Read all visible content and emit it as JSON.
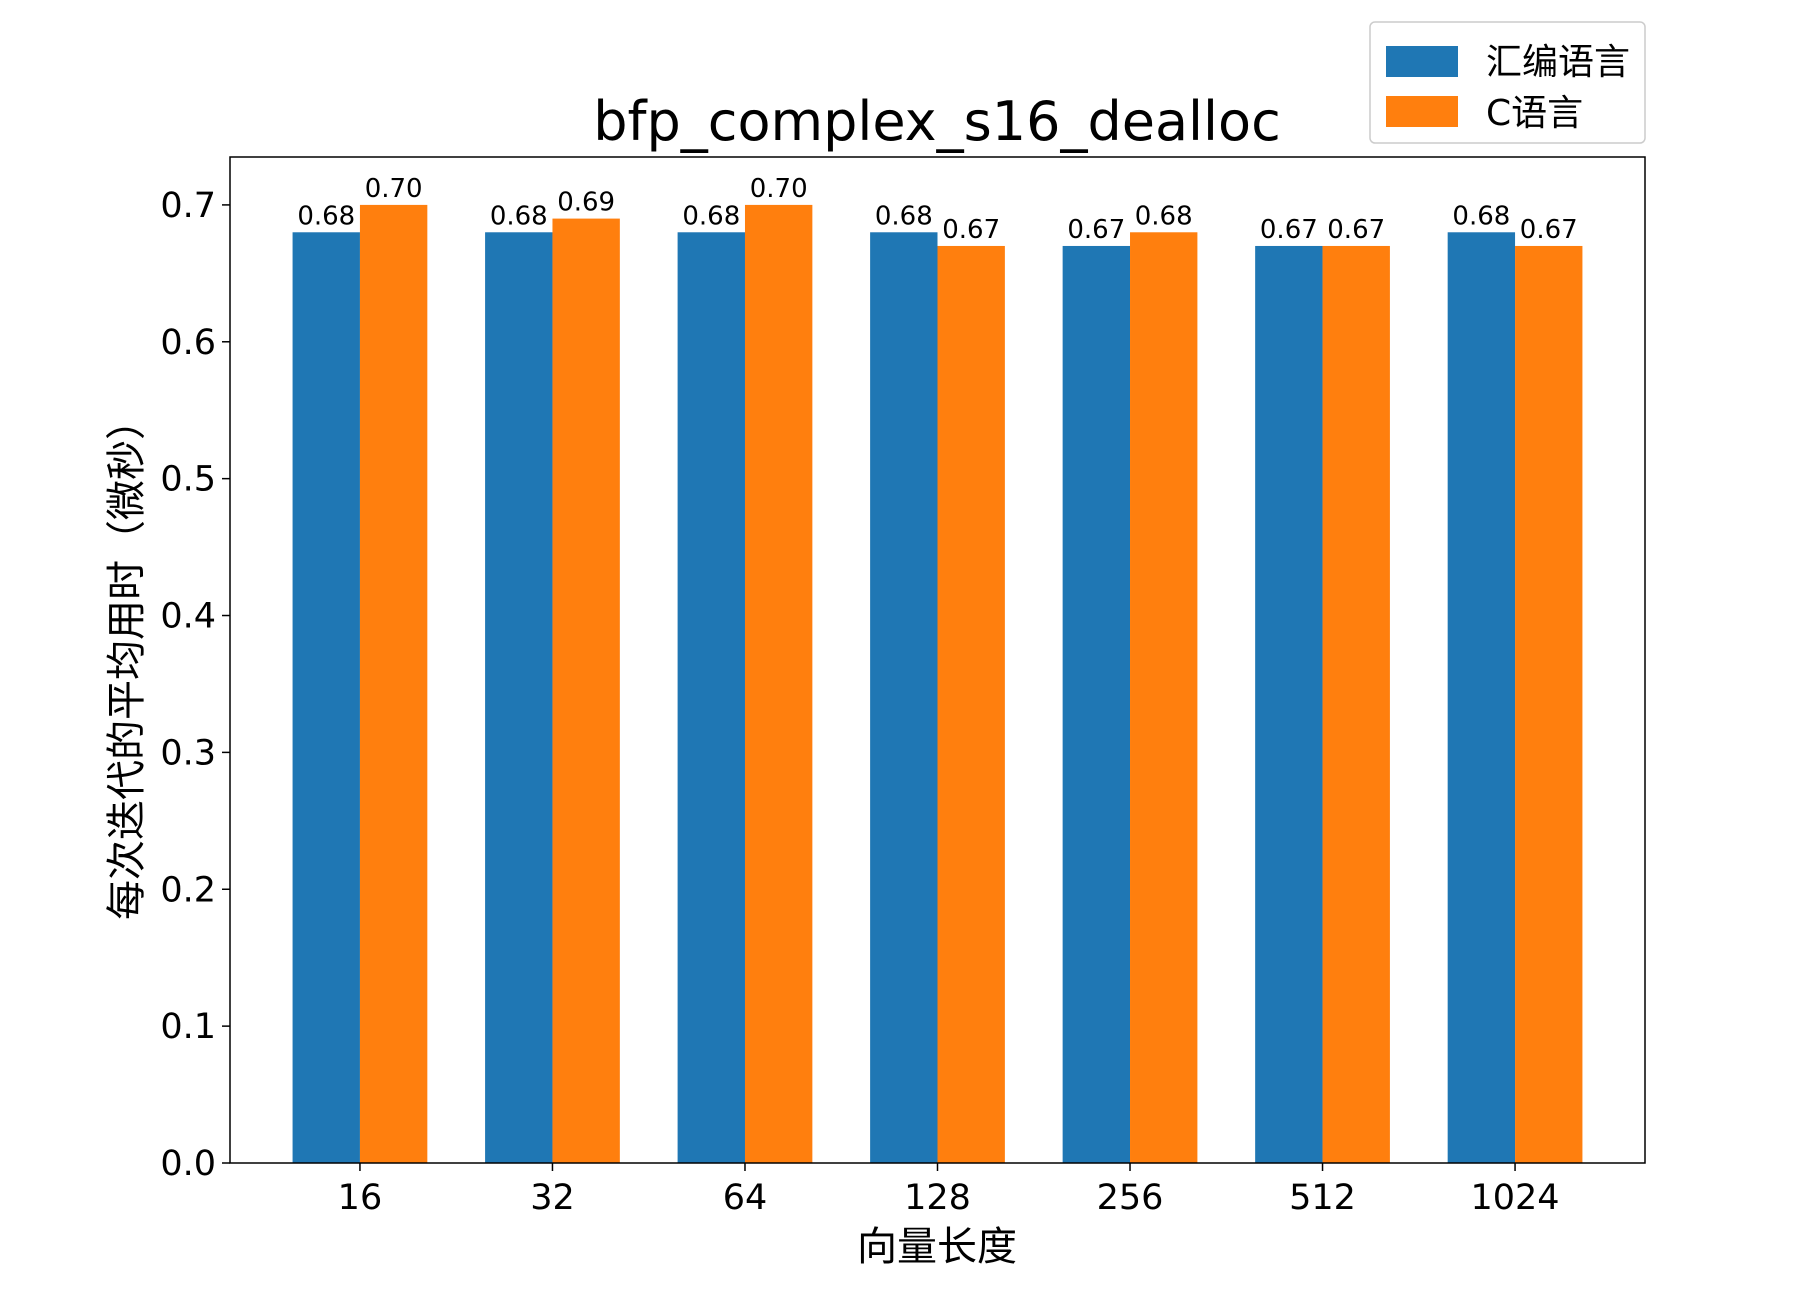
{
  "chart_data": {
    "type": "bar",
    "title": "bfp_complex_s16_dealloc",
    "xlabel": "向量长度",
    "ylabel": "每次迭代的平均用时（微秒）",
    "categories": [
      "16",
      "32",
      "64",
      "128",
      "256",
      "512",
      "1024"
    ],
    "series": [
      {
        "name": "汇编语言",
        "color": "#1f77b4",
        "values": [
          0.68,
          0.68,
          0.68,
          0.68,
          0.67,
          0.67,
          0.68
        ],
        "labels": [
          "0.68",
          "0.68",
          "0.68",
          "0.68",
          "0.67",
          "0.67",
          "0.68"
        ]
      },
      {
        "name": "C语言",
        "color": "#ff7f0e",
        "values": [
          0.7,
          0.69,
          0.7,
          0.67,
          0.68,
          0.67,
          0.67
        ],
        "labels": [
          "0.70",
          "0.69",
          "0.70",
          "0.67",
          "0.68",
          "0.67",
          "0.67"
        ]
      }
    ],
    "ylim": [
      0,
      0.735
    ],
    "yticks": [
      "0.0",
      "0.1",
      "0.2",
      "0.3",
      "0.4",
      "0.5",
      "0.6",
      "0.7"
    ],
    "grid": false,
    "legend": "upper-right"
  }
}
